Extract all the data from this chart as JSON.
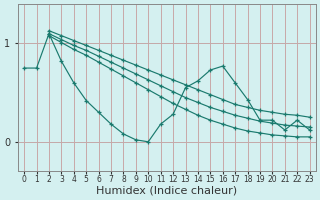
{
  "background_color": "#d4f0f0",
  "line_color": "#1a7a6e",
  "grid_color": "#b0d8d8",
  "axis_color": "#888888",
  "xlabel": "Humidex (Indice chaleur)",
  "xlabel_fontsize": 8,
  "tick_fontsize": 7,
  "yticks": [
    0,
    1
  ],
  "ylim": [
    -0.3,
    1.4
  ],
  "xlim": [
    -0.5,
    23.5
  ],
  "xticks": [
    0,
    1,
    2,
    3,
    4,
    5,
    6,
    7,
    8,
    9,
    10,
    11,
    12,
    13,
    14,
    15,
    16,
    17,
    18,
    19,
    20,
    21,
    22,
    23
  ],
  "series": [
    {
      "x": [
        0,
        1,
        2,
        3,
        4,
        5,
        6,
        7,
        8,
        9,
        10,
        11,
        12,
        13,
        14,
        15,
        16,
        17,
        18,
        19,
        20,
        21,
        22,
        23
      ],
      "y": [
        0.75,
        0.75,
        1.1,
        0.82,
        0.6,
        0.42,
        0.3,
        0.18,
        0.08,
        0.02,
        0.0,
        0.18,
        0.28,
        0.55,
        0.62,
        0.73,
        0.77,
        0.6,
        0.43,
        0.22,
        0.22,
        0.12,
        0.22,
        0.12
      ]
    },
    {
      "x": [
        2,
        3,
        4,
        5,
        6,
        7,
        8,
        9,
        10,
        11,
        12,
        13,
        14,
        15,
        16,
        17,
        18,
        19,
        20,
        21,
        22,
        23
      ],
      "y": [
        1.13,
        1.08,
        1.03,
        0.98,
        0.93,
        0.88,
        0.83,
        0.78,
        0.73,
        0.68,
        0.63,
        0.58,
        0.53,
        0.48,
        0.43,
        0.38,
        0.35,
        0.32,
        0.3,
        0.28,
        0.27,
        0.25
      ]
    },
    {
      "x": [
        2,
        3,
        4,
        5,
        6,
        7,
        8,
        9,
        10,
        11,
        12,
        13,
        14,
        15,
        16,
        17,
        18,
        19,
        20,
        21,
        22,
        23
      ],
      "y": [
        1.1,
        1.04,
        0.98,
        0.93,
        0.87,
        0.81,
        0.75,
        0.69,
        0.63,
        0.57,
        0.51,
        0.45,
        0.4,
        0.35,
        0.31,
        0.27,
        0.24,
        0.21,
        0.19,
        0.17,
        0.16,
        0.15
      ]
    },
    {
      "x": [
        2,
        3,
        4,
        5,
        6,
        7,
        8,
        9,
        10,
        11,
        12,
        13,
        14,
        15,
        16,
        17,
        18,
        19,
        20,
        21,
        22,
        23
      ],
      "y": [
        1.08,
        1.01,
        0.94,
        0.88,
        0.81,
        0.74,
        0.67,
        0.6,
        0.53,
        0.46,
        0.39,
        0.33,
        0.27,
        0.22,
        0.18,
        0.14,
        0.11,
        0.09,
        0.07,
        0.06,
        0.05,
        0.05
      ]
    }
  ]
}
